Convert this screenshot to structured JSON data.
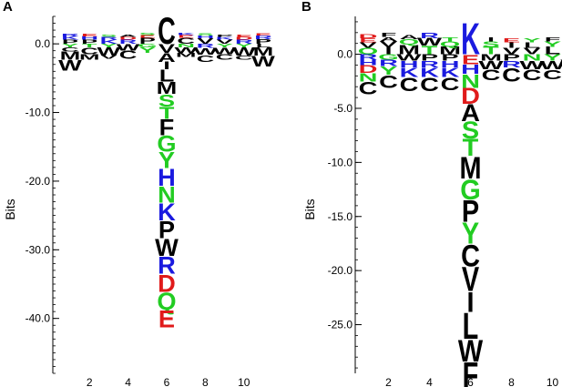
{
  "colors": {
    "hydrophobic": "#000000",
    "polar": "#22cc22",
    "basic": "#1a1adf",
    "acidic": "#e01a1a",
    "other": "#000000"
  },
  "chart_data": [
    {
      "type": "sequence_logo",
      "panel_label": "A",
      "ylabel": "Bits",
      "ylim": [
        -48,
        4
      ],
      "y_ticks": [
        0,
        -10,
        -20,
        -30,
        -40
      ],
      "y_tick_labels": [
        "0.0",
        "-10.0",
        "-20.0",
        "-30.0",
        "-40.0"
      ],
      "x_ticks": [
        2,
        4,
        6,
        8,
        10
      ],
      "x_tick_labels": [
        "2",
        "4",
        "6",
        "8",
        "10"
      ],
      "positions": 11,
      "columns": [
        {
          "pos": 1,
          "above": [
            [
              "P",
              0.6
            ],
            [
              "K",
              0.5
            ],
            [
              "R",
              0.4
            ]
          ],
          "below": [
            [
              "Y",
              0.5
            ],
            [
              "C",
              0.6
            ],
            [
              "M",
              1.2
            ],
            [
              "W",
              1.6
            ]
          ]
        },
        {
          "pos": 2,
          "above": [
            [
              "P",
              0.6
            ],
            [
              "H",
              0.5
            ],
            [
              "E",
              0.4
            ]
          ],
          "below": [
            [
              "T",
              0.5
            ],
            [
              "C",
              1.0
            ],
            [
              "M",
              0.8
            ]
          ]
        },
        {
          "pos": 3,
          "above": [
            [
              "K",
              0.6
            ],
            [
              "R",
              0.4
            ],
            [
              "S",
              0.3
            ]
          ],
          "below": [
            [
              "Y",
              0.5
            ],
            [
              "W",
              1.2
            ],
            [
              "V",
              0.5
            ]
          ]
        },
        {
          "pos": 4,
          "above": [
            [
              "R",
              0.6
            ],
            [
              "D",
              0.4
            ],
            [
              "A",
              0.3
            ]
          ],
          "below": [
            [
              "W",
              1.0
            ],
            [
              "C",
              1.2
            ]
          ]
        },
        {
          "pos": 5,
          "above": [
            [
              "P",
              0.9
            ],
            [
              "E",
              0.4
            ],
            [
              "S",
              0.3
            ]
          ],
          "below": [
            [
              "G",
              0.5
            ],
            [
              "Y",
              0.8
            ]
          ]
        },
        {
          "pos": 6,
          "above": [
            [
              "C",
              4.0
            ]
          ],
          "below": [
            [
              "V",
              1.3
            ],
            [
              "A",
              1.3
            ],
            [
              "I",
              1.1
            ],
            [
              "L",
              1.8
            ],
            [
              "M",
              1.8
            ],
            [
              "S",
              1.8
            ],
            [
              "T",
              1.8
            ],
            [
              "F",
              2.4
            ],
            [
              "G",
              2.4
            ],
            [
              "Y",
              2.4
            ],
            [
              "H",
              2.6
            ],
            [
              "N",
              2.4
            ],
            [
              "K",
              2.6
            ],
            [
              "P",
              2.6
            ],
            [
              "W",
              2.6
            ],
            [
              "R",
              2.6
            ],
            [
              "D",
              2.6
            ],
            [
              "Q",
              2.6
            ],
            [
              "E",
              2.6
            ]
          ]
        },
        {
          "pos": 7,
          "above": [
            [
              "C",
              0.9
            ],
            [
              "E",
              0.4
            ],
            [
              "K",
              0.3
            ]
          ],
          "below": [
            [
              "N",
              0.5
            ],
            [
              "W",
              0.8
            ],
            [
              "M",
              0.6
            ]
          ]
        },
        {
          "pos": 8,
          "above": [
            [
              "V",
              0.8
            ],
            [
              "H",
              0.4
            ],
            [
              "S",
              0.3
            ]
          ],
          "below": [
            [
              "R",
              0.6
            ],
            [
              "W",
              1.0
            ],
            [
              "C",
              1.0
            ]
          ]
        },
        {
          "pos": 9,
          "above": [
            [
              "V",
              0.6
            ],
            [
              "K",
              0.4
            ],
            [
              "P",
              0.3
            ]
          ],
          "below": [
            [
              "Y",
              0.5
            ],
            [
              "W",
              1.0
            ],
            [
              "C",
              0.8
            ]
          ]
        },
        {
          "pos": 10,
          "above": [
            [
              "R",
              0.6
            ],
            [
              "D",
              0.4
            ],
            [
              "E",
              0.3
            ]
          ],
          "below": [
            [
              "Y",
              0.5
            ],
            [
              "W",
              1.2
            ],
            [
              "C",
              0.6
            ]
          ]
        },
        {
          "pos": 11,
          "above": [
            [
              "P",
              0.7
            ],
            [
              "R",
              0.5
            ],
            [
              "E",
              0.3
            ]
          ],
          "below": [
            [
              "L",
              0.5
            ],
            [
              "M",
              1.2
            ],
            [
              "W",
              1.6
            ]
          ]
        }
      ]
    },
    {
      "type": "sequence_logo",
      "panel_label": "B",
      "ylabel": "Bits",
      "ylim": [
        -29.5,
        3.5
      ],
      "y_ticks": [
        0,
        -5,
        -10,
        -15,
        -20,
        -25
      ],
      "y_tick_labels": [
        "0.0",
        "-5.0",
        "-10.0",
        "-15.0",
        "-20.0",
        "-25.0"
      ],
      "x_ticks": [
        2,
        4,
        6,
        8,
        10
      ],
      "x_tick_labels": [
        "2",
        "4",
        "6",
        "8",
        "10"
      ],
      "positions": 11,
      "columns": [
        {
          "pos": 1,
          "above": [
            [
              "Q",
              0.6
            ],
            [
              "V",
              0.5
            ],
            [
              "E",
              0.4
            ],
            [
              "D",
              0.4
            ]
          ],
          "below": [
            [
              "R",
              0.5
            ],
            [
              "H",
              0.5
            ],
            [
              "D",
              0.7
            ],
            [
              "N",
              0.8
            ],
            [
              "C",
              1.2
            ]
          ]
        },
        {
          "pos": 2,
          "above": [
            [
              "I",
              0.7
            ],
            [
              "V",
              0.5
            ],
            [
              "A",
              0.4
            ],
            [
              "F",
              0.4
            ]
          ],
          "below": [
            [
              "G",
              0.5
            ],
            [
              "R",
              0.6
            ],
            [
              "Y",
              0.8
            ],
            [
              "C",
              1.2
            ]
          ]
        },
        {
          "pos": 3,
          "above": [
            [
              "M",
              0.9
            ],
            [
              "Q",
              0.5
            ],
            [
              "A",
              0.4
            ]
          ],
          "below": [
            [
              "W",
              0.6
            ],
            [
              "H",
              0.6
            ],
            [
              "K",
              0.9
            ],
            [
              "C",
              1.3
            ]
          ]
        },
        {
          "pos": 4,
          "above": [
            [
              "T",
              0.8
            ],
            [
              "W",
              0.7
            ],
            [
              "R",
              0.5
            ]
          ],
          "below": [
            [
              "P",
              0.6
            ],
            [
              "R",
              0.6
            ],
            [
              "K",
              0.9
            ],
            [
              "C",
              1.3
            ]
          ]
        },
        {
          "pos": 5,
          "above": [
            [
              "M",
              0.7
            ],
            [
              "Q",
              0.5
            ],
            [
              "T",
              0.4
            ]
          ],
          "below": [
            [
              "P",
              0.6
            ],
            [
              "H",
              0.6
            ],
            [
              "K",
              0.9
            ],
            [
              "C",
              1.2
            ]
          ]
        },
        {
          "pos": 6,
          "above": [
            [
              "K",
              3.0
            ]
          ],
          "below": [
            [
              "E",
              0.9
            ],
            [
              "H",
              0.9
            ],
            [
              "N",
              1.3
            ],
            [
              "D",
              1.5
            ],
            [
              "A",
              1.6
            ],
            [
              "S",
              1.6
            ],
            [
              "T",
              1.6
            ],
            [
              "M",
              2.1
            ],
            [
              "G",
              1.9
            ],
            [
              "P",
              2.1
            ],
            [
              "Y",
              2.0
            ],
            [
              "C",
              2.1
            ],
            [
              "V",
              2.3
            ],
            [
              "I",
              1.9
            ],
            [
              "L",
              2.5
            ],
            [
              "W",
              2.1
            ],
            [
              "F",
              2.4
            ]
          ]
        },
        {
          "pos": 7,
          "above": [
            [
              "T",
              0.7
            ],
            [
              "S",
              0.5
            ],
            [
              "I",
              0.4
            ]
          ],
          "below": [
            [
              "M",
              0.6
            ],
            [
              "W",
              0.8
            ],
            [
              "C",
              1.0
            ]
          ]
        },
        {
          "pos": 8,
          "above": [
            [
              "V",
              0.6
            ],
            [
              "I",
              0.5
            ],
            [
              "E",
              0.4
            ]
          ],
          "below": [
            [
              "P",
              0.6
            ],
            [
              "R",
              0.6
            ],
            [
              "C",
              1.3
            ]
          ]
        },
        {
          "pos": 9,
          "above": [
            [
              "V",
              0.6
            ],
            [
              "L",
              0.5
            ],
            [
              "Y",
              0.4
            ]
          ],
          "below": [
            [
              "N",
              0.6
            ],
            [
              "W",
              0.8
            ],
            [
              "C",
              1.0
            ]
          ]
        },
        {
          "pos": 10,
          "above": [
            [
              "L",
              0.7
            ],
            [
              "Y",
              0.5
            ],
            [
              "F",
              0.4
            ]
          ],
          "below": [
            [
              "Y",
              0.6
            ],
            [
              "W",
              0.8
            ],
            [
              "C",
              0.9
            ]
          ]
        },
        {
          "pos": 11,
          "above": [
            [
              "T",
              0.5
            ],
            [
              "V",
              0.5
            ],
            [
              "K",
              0.4
            ]
          ],
          "below": [
            [
              "D",
              0.5
            ],
            [
              "W",
              0.7
            ],
            [
              "C",
              1.1
            ]
          ]
        }
      ]
    }
  ]
}
